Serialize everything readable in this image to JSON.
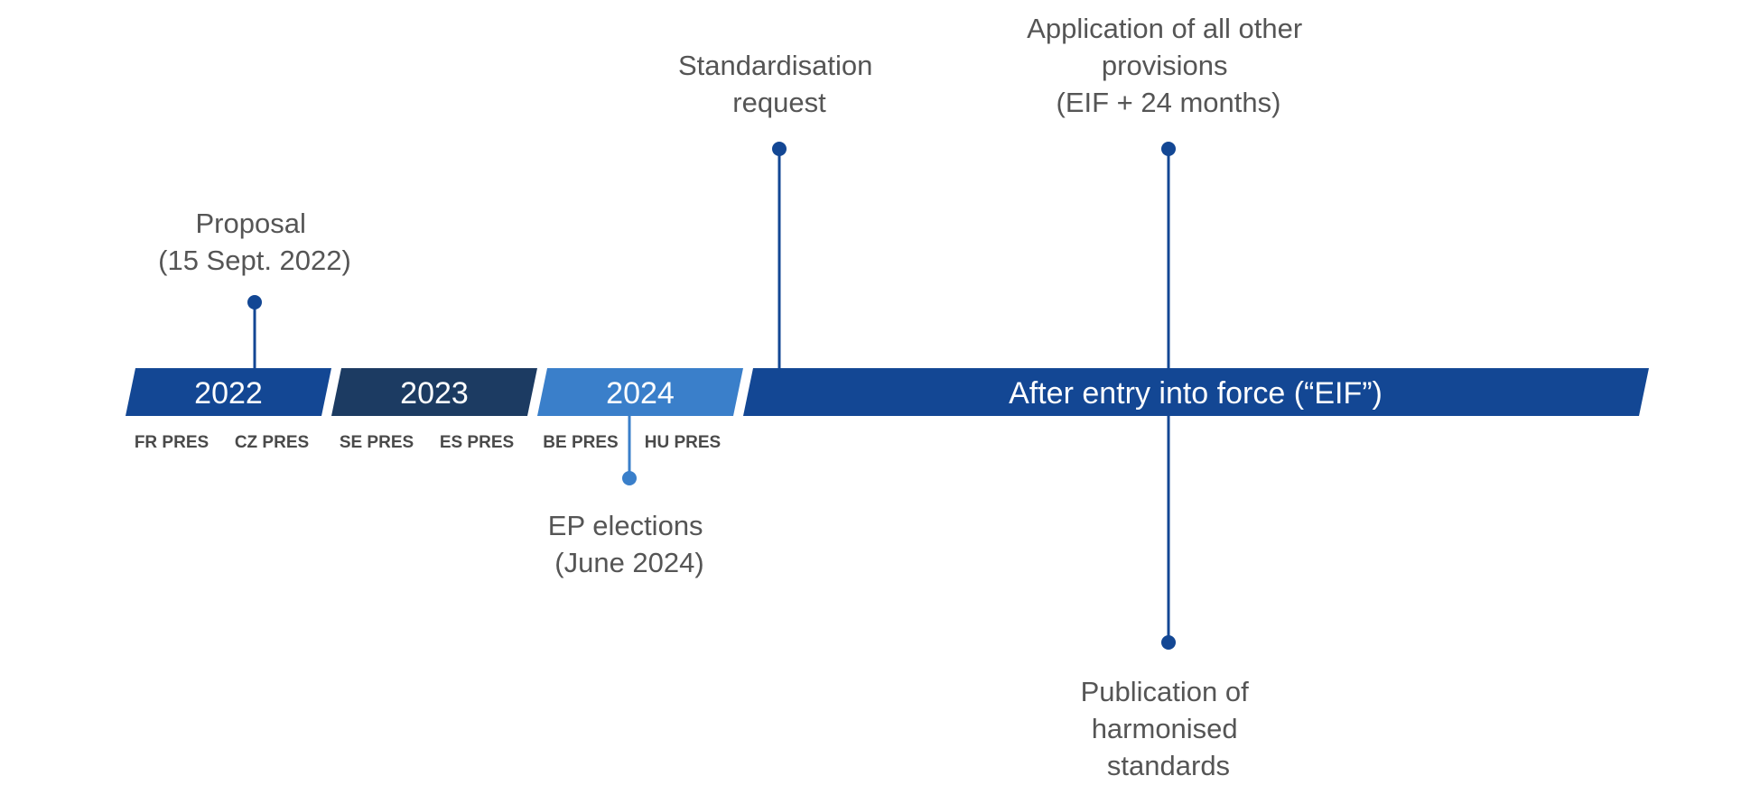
{
  "colors": {
    "dark_blue": "#134794",
    "navy": "#1c3b62",
    "light_blue": "#3a7fca",
    "stem": "#134794",
    "stem_light": "#3a7fca",
    "text_gray": "#555555",
    "pres_gray": "#4a4a4a"
  },
  "segments": [
    {
      "id": "2022",
      "label": "2022",
      "color": "#134794"
    },
    {
      "id": "2023",
      "label": "2023",
      "color": "#1c3b62"
    },
    {
      "id": "2024",
      "label": "2024",
      "color": "#3a7fca"
    },
    {
      "id": "after",
      "label": "After entry into force (“EIF”)",
      "color": "#134794"
    }
  ],
  "presidencies": [
    "FR PRES",
    "CZ PRES",
    "SE PRES",
    "ES PRES",
    "BE PRES",
    "HU PRES"
  ],
  "milestones": [
    {
      "id": "proposal",
      "lines": [
        "Proposal",
        "(15 Sept. 2022)"
      ]
    },
    {
      "id": "standardisation",
      "lines": [
        "Standardisation",
        "request"
      ]
    },
    {
      "id": "application",
      "lines": [
        "Application of all other",
        "provisions",
        "(EIF + 24 months)"
      ]
    },
    {
      "id": "ep-elections",
      "lines": [
        "EP elections",
        "(June 2024)"
      ]
    },
    {
      "id": "publication",
      "lines": [
        "Publication of",
        "harmonised",
        "standards"
      ]
    }
  ]
}
